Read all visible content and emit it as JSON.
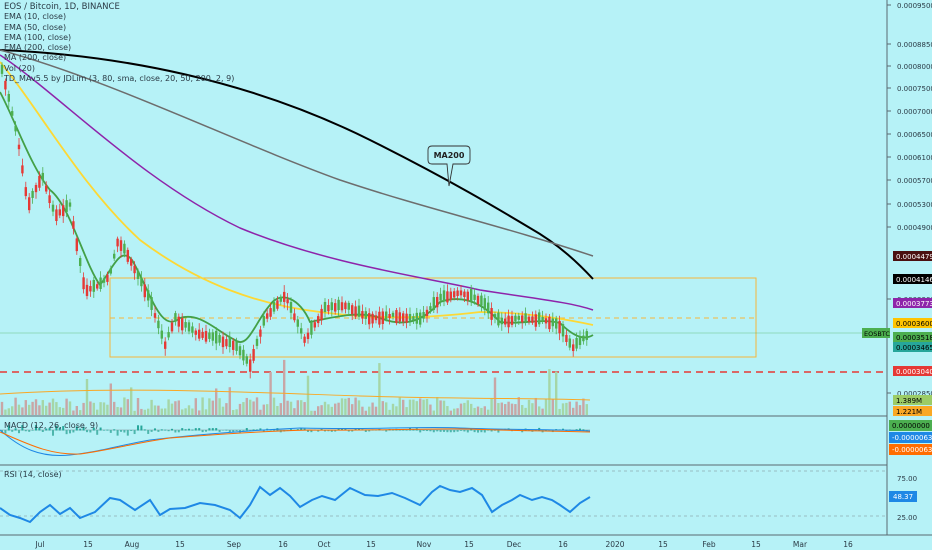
{
  "header": {
    "title": "EOS / Bitcoin, 1D, BINANCE"
  },
  "legend": [
    "EMA (10, close)",
    "EMA (50, close)",
    "EMA (100, close)",
    "EMA (200, close)",
    "MA (200, close)",
    "Vol (20)",
    "TD_MAv5.5 by JDLim (3, 80, sma, close, 20, 50, 200, 2, 9)"
  ],
  "annotation": {
    "label": "MA200"
  },
  "price_axis": {
    "ticks": [
      "0.0009500",
      "0.0008850",
      "0.0008000",
      "0.0007500",
      "0.0007000",
      "0.0006500",
      "0.0006100",
      "0.0005700",
      "0.0005300",
      "0.0004900",
      "0.0003300",
      "0.0002850"
    ],
    "labels": [
      {
        "text": "0.0004479",
        "bg": "#4a1010",
        "fg": "#ffffff"
      },
      {
        "text": "0.0004146",
        "bg": "#000000",
        "fg": "#ffffff"
      },
      {
        "text": "0.0003773",
        "bg": "#8e24aa",
        "fg": "#ffffff"
      },
      {
        "text": "0.0003600",
        "bg": "#ffc400",
        "fg": "#000000"
      },
      {
        "text": "0.0003518",
        "bg": "#4caf50",
        "fg": "#000000"
      },
      {
        "text": "0.0003465",
        "bg": "#26a69a",
        "fg": "#000000"
      },
      {
        "text": "0.0003040",
        "bg": "#e53935",
        "fg": "#ffffff"
      },
      {
        "text": "1.389M",
        "bg": "#9ccc65",
        "fg": "#000000"
      },
      {
        "text": "1.221M",
        "bg": "#f9a825",
        "fg": "#000000"
      }
    ],
    "symbol_tag": "EOSBTC"
  },
  "macd": {
    "label": "MACD (12, 26, close, 9)",
    "values": [
      {
        "text": "0.0000000",
        "bg": "#4caf50",
        "fg": "#000000"
      },
      {
        "text": "-0.0000063",
        "bg": "#1e88e5",
        "fg": "#ffffff"
      },
      {
        "text": "-0.0000063",
        "bg": "#ff6d00",
        "fg": "#ffffff"
      }
    ]
  },
  "rsi": {
    "label": "RSI (14, close)",
    "ticks": [
      "75.00",
      "25.00"
    ],
    "value": {
      "text": "48.37",
      "bg": "#1e88e5",
      "fg": "#ffffff"
    }
  },
  "time_axis": {
    "ticks": [
      "Jul",
      "15",
      "Aug",
      "15",
      "Sep",
      "16",
      "Oct",
      "15",
      "Nov",
      "15",
      "Dec",
      "16",
      "2020",
      "15",
      "Feb",
      "15",
      "Mar",
      "16"
    ]
  },
  "colors": {
    "background": "#b6f2f7",
    "candle_up": "#4caf50",
    "candle_down": "#e53935",
    "ema10": "#43a047",
    "ema50": "#fdd835",
    "ema100": "#8e24aa",
    "ema200": "#6d6d6d",
    "ma200": "#000000",
    "rsi_line": "#1e88e5",
    "support_line": "#e53935",
    "range_lines": "#f5b73b"
  },
  "chart_data": {
    "type": "candlestick",
    "symbol": "EOSBTC",
    "interval": "1D",
    "exchange": "BINANCE",
    "close_path": [
      [
        "Jul",
        0.00076
      ],
      [
        "15",
        0.00052
      ],
      [
        "Aug",
        0.00039
      ],
      [
        "15",
        0.00034
      ],
      [
        "Sep",
        0.00031
      ],
      [
        "16",
        0.00038
      ],
      [
        "Oct",
        0.00036
      ],
      [
        "15",
        0.00037
      ],
      [
        "Nov",
        0.00038
      ],
      [
        "15",
        0.00037
      ],
      [
        "Dec",
        0.00036
      ],
      [
        "16",
        0.00035
      ]
    ],
    "last_values": {
      "ma200": 0.0004146,
      "ema200": 0.0004479,
      "ema100": 0.0003773,
      "ema50": 0.00036,
      "ema10": 0.0003518,
      "close": 0.0003465,
      "support": 0.000304
    },
    "volume_last": [
      "1.389M",
      "1.221M"
    ],
    "macd_last": [
      0.0,
      -6.3e-06,
      -6.3e-06
    ],
    "rsi_last": 48.37,
    "rsi_bands": [
      75,
      25
    ]
  }
}
